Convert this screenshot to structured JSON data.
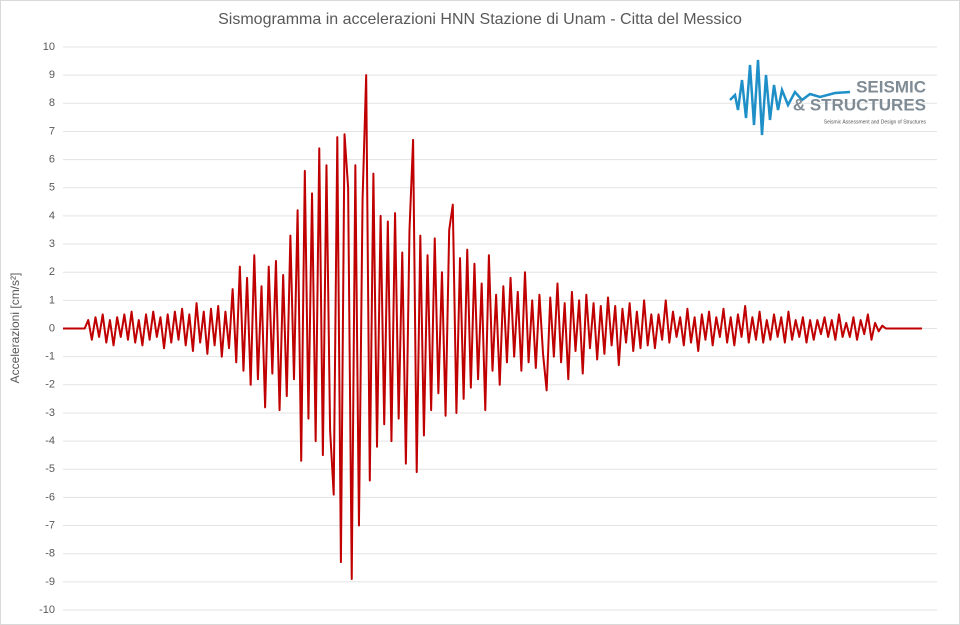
{
  "chart_data": {
    "type": "line",
    "title": "Sismogramma in accelerazioni HNN Stazione di Unam - Citta del Messico",
    "y_label": "Accelerazioni [cm/s²]",
    "ylim": [
      -10,
      10
    ],
    "yticks": [
      -10,
      -9,
      -8,
      -7,
      -6,
      -5,
      -4,
      -3,
      -2,
      -1,
      0,
      1,
      2,
      3,
      4,
      5,
      6,
      7,
      8,
      9,
      10
    ],
    "grid": true,
    "series": [
      {
        "color": "#c00000",
        "values": [
          0,
          0,
          0,
          0,
          0,
          0,
          0,
          0.3,
          -0.4,
          0.4,
          -0.3,
          0.5,
          -0.5,
          0.3,
          -0.6,
          0.4,
          -0.3,
          0.5,
          -0.4,
          0.6,
          -0.5,
          0.3,
          -0.6,
          0.5,
          -0.4,
          0.6,
          -0.3,
          0.4,
          -0.7,
          0.5,
          -0.5,
          0.6,
          -0.4,
          0.7,
          -0.6,
          0.5,
          -0.8,
          0.9,
          -0.5,
          0.6,
          -0.9,
          0.7,
          -0.6,
          0.8,
          -1.0,
          0.6,
          -0.7,
          1.4,
          -1.2,
          2.2,
          -1.5,
          1.8,
          -2.0,
          2.6,
          -1.8,
          1.5,
          -2.8,
          2.2,
          -1.6,
          2.4,
          -2.9,
          1.9,
          -2.4,
          3.3,
          -1.8,
          4.2,
          -4.7,
          5.6,
          -3.2,
          4.8,
          -4.0,
          6.4,
          -4.5,
          5.8,
          -3.6,
          -5.9,
          6.8,
          -8.3,
          6.9,
          5.0,
          -8.9,
          5.8,
          -7.0,
          4.6,
          9.0,
          -5.4,
          5.5,
          -4.2,
          4.0,
          -3.4,
          3.8,
          -4.0,
          4.1,
          -3.2,
          2.7,
          -4.8,
          3.5,
          6.7,
          -5.1,
          3.3,
          -3.8,
          2.6,
          -2.9,
          3.2,
          -2.3,
          2.0,
          -3.1,
          3.5,
          4.4,
          -3.0,
          2.5,
          -2.5,
          2.8,
          -2.1,
          2.3,
          -1.8,
          1.6,
          -2.9,
          2.6,
          -1.5,
          1.2,
          -2.0,
          1.5,
          -1.2,
          1.8,
          -1.0,
          1.3,
          -1.5,
          2.0,
          -1.2,
          1.0,
          -1.4,
          1.2,
          -0.9,
          -2.2,
          1.1,
          -1.0,
          1.6,
          -1.2,
          0.9,
          -1.8,
          1.3,
          -0.8,
          1.0,
          -1.6,
          1.2,
          -0.7,
          0.9,
          -1.1,
          0.8,
          -0.9,
          1.1,
          -0.6,
          0.8,
          -1.3,
          0.7,
          -0.5,
          0.9,
          -0.8,
          0.6,
          -0.7,
          1.0,
          -0.6,
          0.5,
          -0.7,
          0.5,
          -0.4,
          1.0,
          -0.5,
          0.6,
          -0.3,
          0.4,
          -0.6,
          0.7,
          -0.5,
          0.4,
          -0.8,
          0.5,
          -0.4,
          0.6,
          -0.6,
          0.4,
          -0.3,
          0.7,
          -0.5,
          0.4,
          -0.6,
          0.5,
          -0.3,
          0.8,
          -0.5,
          0.4,
          -0.4,
          0.6,
          -0.5,
          0.3,
          -0.4,
          0.5,
          -0.3,
          0.4,
          -0.5,
          0.6,
          -0.4,
          0.3,
          -0.3,
          0.4,
          -0.5,
          0.3,
          -0.4,
          0.3,
          -0.2,
          0.4,
          -0.3,
          0.3,
          -0.4,
          0.5,
          -0.3,
          0.2,
          -0.3,
          0.4,
          -0.4,
          0.3,
          -0.2,
          0.5,
          -0.4,
          0.2,
          -0.1,
          0.1,
          0,
          0,
          0,
          0,
          0,
          0,
          0,
          0,
          0,
          0,
          0
        ]
      }
    ]
  },
  "logo": {
    "line1": "SEISMIC",
    "line2": "& STRUCTURES",
    "tagline": "Seismic Assessment and Design of Structures"
  }
}
